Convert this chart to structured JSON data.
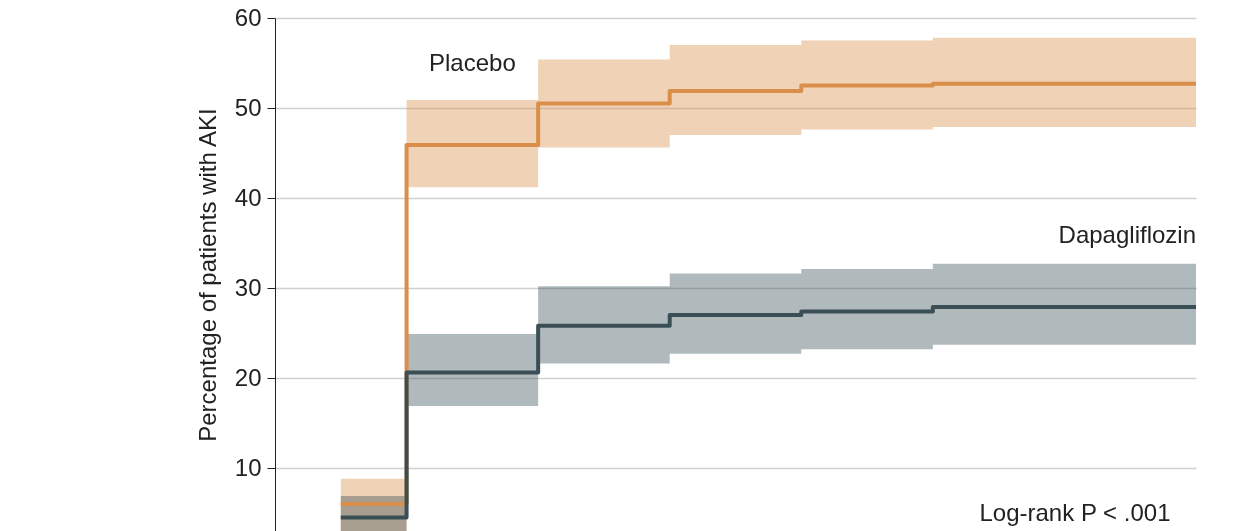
{
  "chart_data": {
    "type": "step",
    "ylabel": "Percentage of patients with AKI",
    "categories": [
      null,
      null,
      null,
      null,
      null,
      null,
      null,
      null,
      null,
      null,
      null,
      null,
      null,
      null
    ],
    "ylim": [
      3,
      60
    ],
    "yticks": [
      10,
      20,
      30,
      40,
      50,
      60
    ],
    "series": [
      {
        "name": "Placebo",
        "color": "#d98f4a",
        "values": [
          6.0,
          45.9,
          45.9,
          50.5,
          50.5,
          51.9,
          51.9,
          52.5,
          52.5,
          52.7,
          52.7,
          52.7,
          52.7,
          52.7
        ],
        "lower": [
          3,
          41.2,
          41.2,
          45.6,
          45.6,
          47.0,
          47.0,
          47.6,
          47.6,
          47.9,
          47.9,
          47.9,
          47.9,
          47.9
        ],
        "upper": [
          8.8,
          50.9,
          50.9,
          55.4,
          55.4,
          57.0,
          57.0,
          57.5,
          57.5,
          57.8,
          57.8,
          57.8,
          57.8,
          57.8
        ]
      },
      {
        "name": "Dapagliflozin",
        "color": "#3a4f55",
        "values": [
          4.5,
          20.6,
          20.6,
          25.8,
          25.8,
          27.0,
          27.0,
          27.4,
          27.4,
          27.9,
          27.9,
          27.9,
          27.9,
          27.9
        ],
        "lower": [
          3,
          16.9,
          16.9,
          21.6,
          21.6,
          22.7,
          22.7,
          23.2,
          23.2,
          23.7,
          23.7,
          23.7,
          23.7,
          23.7
        ],
        "upper": [
          6.9,
          24.9,
          24.9,
          30.2,
          30.2,
          31.6,
          31.6,
          32.1,
          32.1,
          32.7,
          32.7,
          32.7,
          32.7,
          32.7
        ]
      }
    ],
    "annotations": [
      "Log-rank P < .001"
    ],
    "grid": "y",
    "tick_labels": "y",
    "line_style": "solid",
    "marker": "none"
  }
}
